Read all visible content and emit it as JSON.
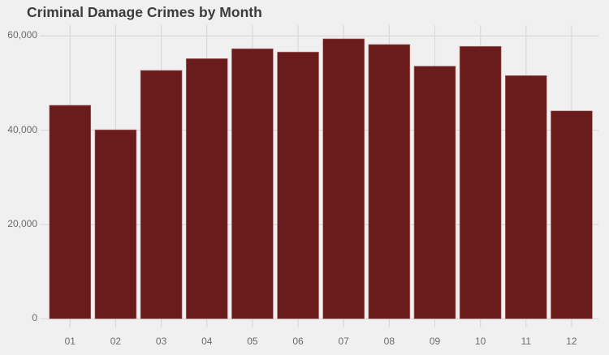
{
  "chart_data": {
    "type": "bar",
    "title": "Criminal Damage Crimes by Month",
    "xlabel": "",
    "ylabel": "",
    "categories": [
      "01",
      "02",
      "03",
      "04",
      "05",
      "06",
      "07",
      "08",
      "09",
      "10",
      "11",
      "12"
    ],
    "values": [
      45300,
      40100,
      52700,
      55200,
      57300,
      56600,
      59400,
      58200,
      53600,
      57800,
      51600,
      44100
    ],
    "ylim": [
      0,
      62000
    ],
    "yticks": [
      0,
      20000,
      40000,
      60000
    ],
    "ytick_labels": [
      "0",
      "20,000",
      "40,000",
      "60,000"
    ],
    "grid": true,
    "legend": null,
    "colors": {
      "bar_fill": "#6a1b1b",
      "bar_outline": "#b07a7a",
      "background": "#f0f0f0",
      "grid": "#d9d9d9",
      "title_text": "#3c3c3c",
      "tick_text": "#6b6b6b"
    }
  }
}
